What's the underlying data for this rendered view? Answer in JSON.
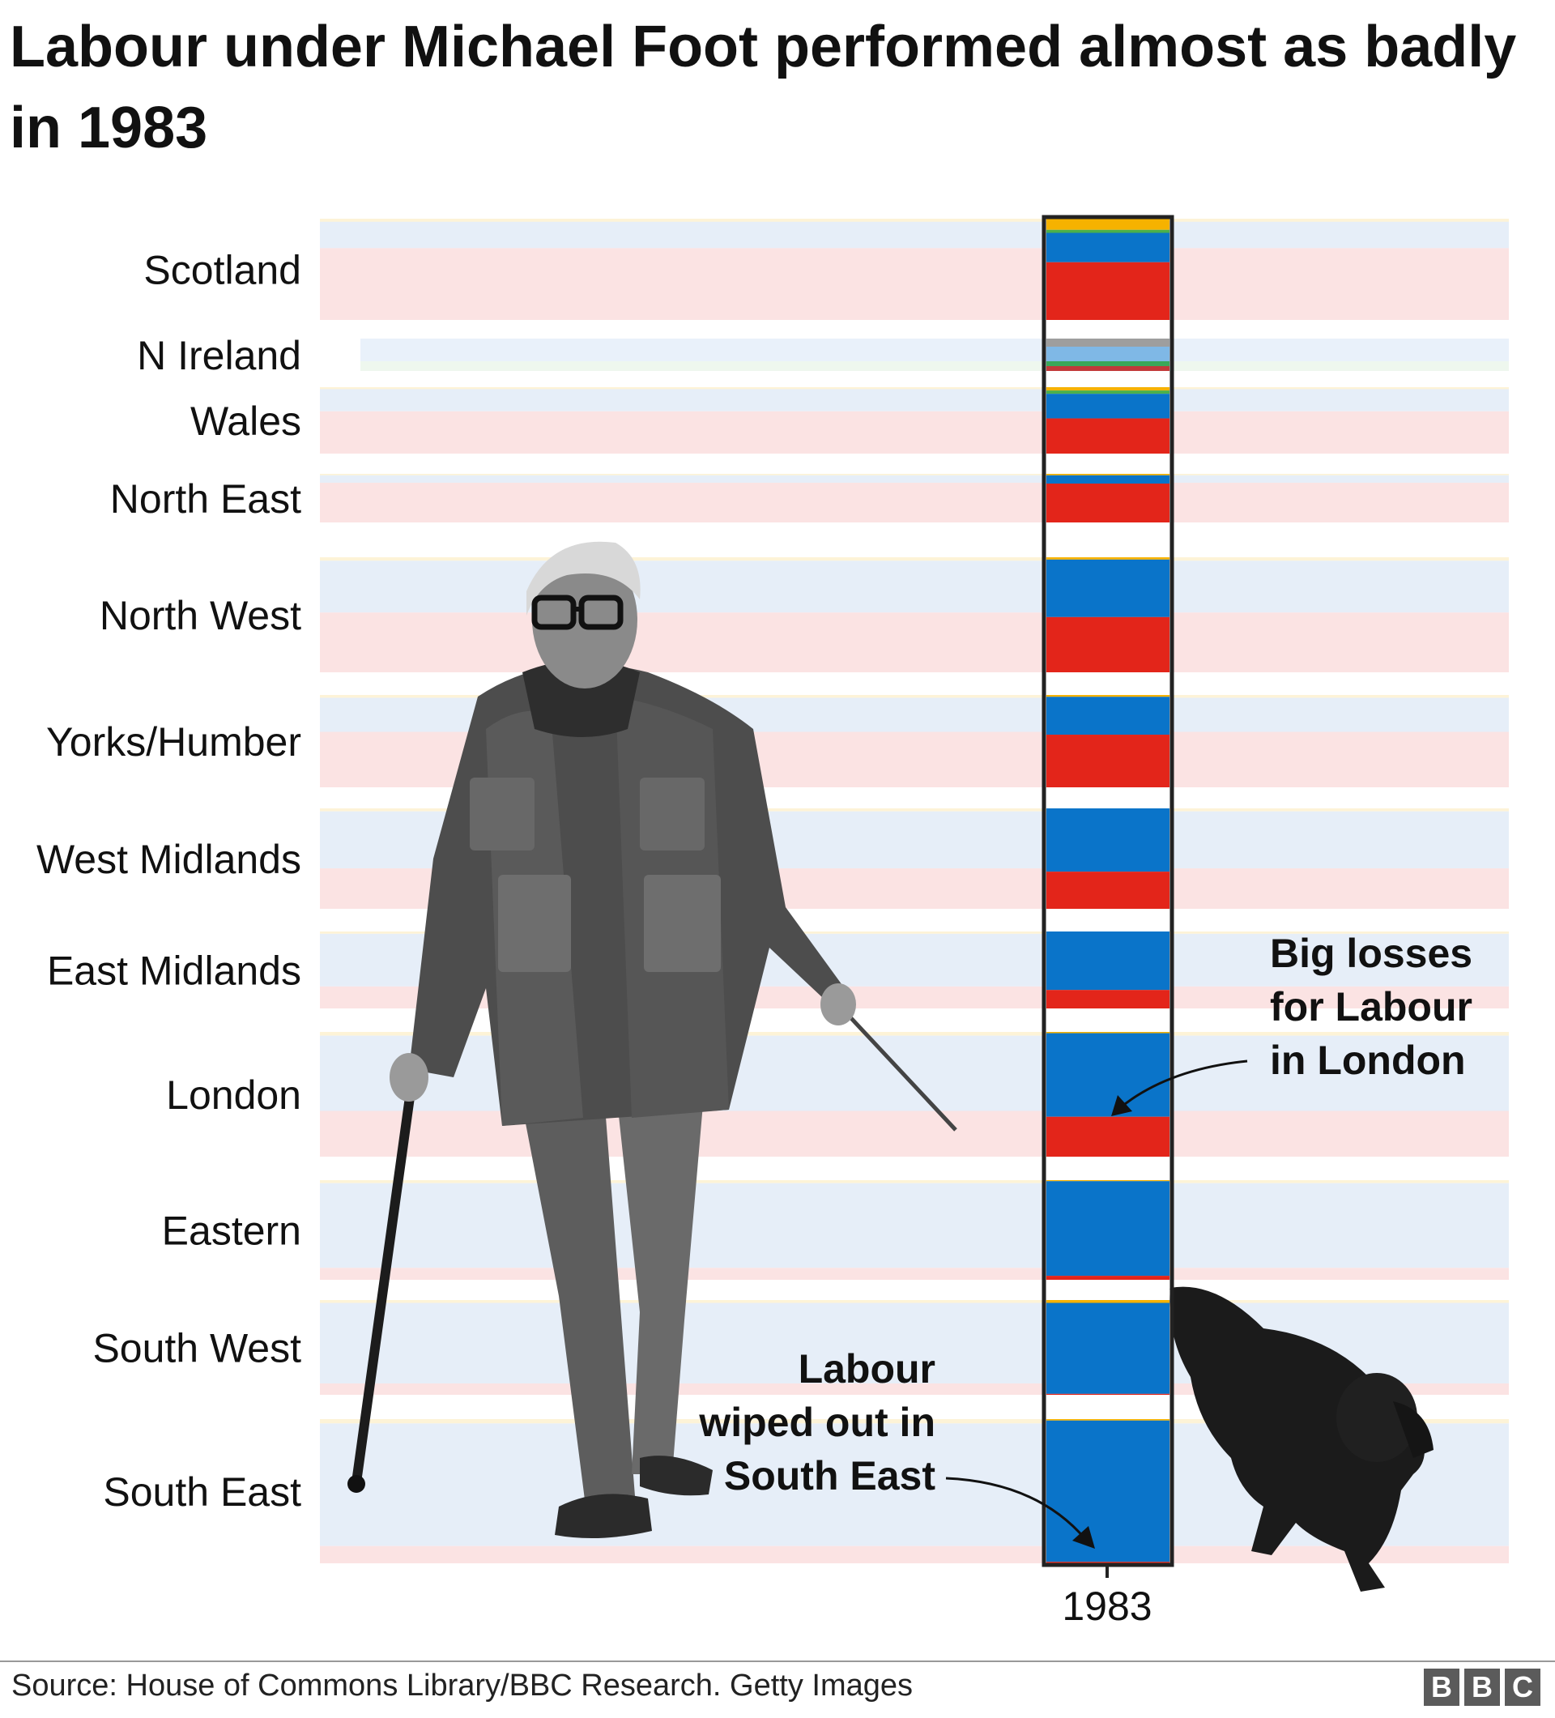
{
  "title": "Labour under Michael Foot performed almost as badly in 1983",
  "source": "Source: House of Commons Library/BBC Research. Getty Images",
  "logo_letters": [
    "B",
    "B",
    "C"
  ],
  "colors": {
    "conservative": "#0a74c9",
    "labour": "#e3251a",
    "liberal": "#f6b200",
    "other_ni": "#9e9e9e",
    "faded_conservative": "#e6eef8",
    "faded_labour": "#fbe3e3",
    "faded_liberal": "#fdf3d7",
    "frame": "#222222"
  },
  "photo": {
    "subject": "Michael Foot walking with a cane and a dog on a lead",
    "icons": [
      "michael-foot-photo",
      "dog-photo"
    ]
  },
  "annotations": [
    {
      "id": "london",
      "lines": [
        "Big losses",
        "for Labour",
        "in London"
      ]
    },
    {
      "id": "south-east",
      "lines": [
        "Labour",
        "wiped out in",
        "South East"
      ]
    }
  ],
  "chart_data": {
    "type": "area",
    "highlight_year": "1983",
    "x_tick_labels": [
      "1983"
    ],
    "unit": "share of seats by party within each region",
    "regions": [
      {
        "name": "Scotland",
        "conservative": 0.29,
        "labour": 0.57,
        "liberal": 0.11,
        "other": 0.03
      },
      {
        "name": "N Ireland",
        "conservative": 0.0,
        "labour": 0.0,
        "liberal": 0.0,
        "other": 1.0
      },
      {
        "name": "Wales",
        "conservative": 0.37,
        "labour": 0.53,
        "liberal": 0.05,
        "other": 0.05
      },
      {
        "name": "North East",
        "conservative": 0.17,
        "labour": 0.8,
        "liberal": 0.03,
        "other": 0.0
      },
      {
        "name": "North West",
        "conservative": 0.5,
        "labour": 0.48,
        "liberal": 0.02,
        "other": 0.0
      },
      {
        "name": "Yorks/Humber",
        "conservative": 0.41,
        "labour": 0.57,
        "liberal": 0.02,
        "other": 0.0
      },
      {
        "name": "West Midlands",
        "conservative": 0.63,
        "labour": 0.37,
        "liberal": 0.0,
        "other": 0.0
      },
      {
        "name": "East Midlands",
        "conservative": 0.76,
        "labour": 0.24,
        "liberal": 0.0,
        "other": 0.0
      },
      {
        "name": "London",
        "conservative": 0.67,
        "labour": 0.32,
        "liberal": 0.01,
        "other": 0.0
      },
      {
        "name": "Eastern",
        "conservative": 0.95,
        "labour": 0.04,
        "liberal": 0.01,
        "other": 0.0
      },
      {
        "name": "South West",
        "conservative": 0.96,
        "labour": 0.01,
        "liberal": 0.03,
        "other": 0.0
      },
      {
        "name": "South East",
        "conservative": 0.98,
        "labour": 0.01,
        "liberal": 0.01,
        "other": 0.0
      }
    ]
  }
}
